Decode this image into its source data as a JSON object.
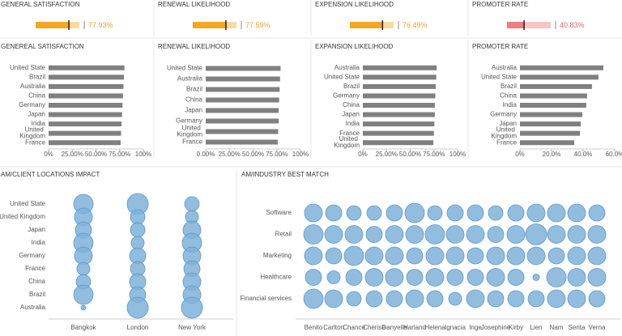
{
  "chart_data": [
    {
      "type": "bullet",
      "title": "GENERAL SATISFACTION",
      "value": 77.93,
      "value_label": "77.93%",
      "xlim": [
        0,
        100
      ],
      "color": "#f5a623",
      "band_color": "#fcd9a2",
      "label_color": "#f0a030"
    },
    {
      "type": "bullet",
      "title": "RENEWAL LIKELIHOOD",
      "value": 77.59,
      "value_label": "77.59%",
      "xlim": [
        0,
        100
      ],
      "color": "#f5a623",
      "band_color": "#fcd9a2",
      "label_color": "#f0a030"
    },
    {
      "type": "bullet",
      "title": "EXPENSION LIKELIHOOD",
      "value": 76.49,
      "value_label": "76.49%",
      "xlim": [
        0,
        100
      ],
      "color": "#f5a623",
      "band_color": "#fcd9a2",
      "label_color": "#f0a030"
    },
    {
      "type": "bullet",
      "title": "PROMOTER RATE",
      "value": 40.83,
      "value_label": "40.83%",
      "xlim": [
        0,
        100
      ],
      "color": "#f07c7c",
      "band_color": "#f8c4c4",
      "label_color": "#e86464"
    },
    {
      "type": "bar",
      "orientation": "horizontal",
      "title": "GENEREAL SATISFACTION",
      "categories": [
        "United State",
        "Brazil",
        "Australia",
        "China",
        "Germany",
        "Japan",
        "India",
        "United Kingdom",
        "France"
      ],
      "values": [
        80,
        79.5,
        79,
        78.5,
        78,
        77.5,
        77,
        76.5,
        76
      ],
      "color": "#808080",
      "xlim": [
        0,
        100
      ],
      "xticks": [
        {
          "value": 0,
          "label": "0%"
        },
        {
          "value": 25,
          "label": "25.00%"
        },
        {
          "value": 50,
          "label": "50.00%"
        },
        {
          "value": 75,
          "label": "75.00%"
        },
        {
          "value": 100,
          "label": "100%"
        }
      ]
    },
    {
      "type": "bar",
      "orientation": "horizontal",
      "title": "RENEWAL LIKELIHOOD",
      "categories": [
        "United State",
        "Australia",
        "Brazil",
        "China",
        "Japan",
        "Germany",
        "United Kingdom",
        "France"
      ],
      "values": [
        79,
        78.5,
        78,
        77.5,
        77,
        77,
        76.5,
        76
      ],
      "color": "#808080",
      "xlim": [
        0,
        100
      ],
      "xticks": [
        {
          "value": 0,
          "label": "0.00%"
        },
        {
          "value": 25,
          "label": "25.00%"
        },
        {
          "value": 50,
          "label": "50.00%"
        },
        {
          "value": 75,
          "label": "75.00%"
        },
        {
          "value": 100,
          "label": "100%"
        }
      ]
    },
    {
      "type": "bar",
      "orientation": "horizontal",
      "title": "EXPANSION LIKELIHOOD",
      "categories": [
        "Australia",
        "United State",
        "Brazil",
        "Germany",
        "China",
        "Japan",
        "India",
        "France",
        "United Kingdom"
      ],
      "values": [
        78,
        77.5,
        77,
        76.5,
        76,
        76,
        75.5,
        75,
        74.5
      ],
      "color": "#808080",
      "xlim": [
        0,
        100
      ],
      "xticks": [
        {
          "value": 0,
          "label": "0%"
        },
        {
          "value": 25,
          "label": "25.00%"
        },
        {
          "value": 50,
          "label": "50.00%"
        },
        {
          "value": 75,
          "label": "75.00%"
        },
        {
          "value": 100,
          "label": "100%"
        }
      ]
    },
    {
      "type": "bar",
      "orientation": "horizontal",
      "title": "PROMOTER RATE",
      "categories": [
        "Australia",
        "United State",
        "Brazil",
        "China",
        "India",
        "Germany",
        "Japan",
        "United Kingdom",
        "France"
      ],
      "values": [
        52.8,
        49.7,
        45.6,
        42.5,
        42,
        39.5,
        38.5,
        38,
        34.4
      ],
      "color": "#808080",
      "xlim": [
        0,
        60
      ],
      "xticks": [
        {
          "value": 0,
          "label": "0%"
        },
        {
          "value": 20,
          "label": "20.0%"
        },
        {
          "value": 40,
          "label": "40.0%"
        },
        {
          "value": 60,
          "label": "60.0%"
        }
      ]
    },
    {
      "type": "bubble",
      "title": "AM/CLIENT LOCATIONS IMPACT",
      "x_categories": [
        "Bangkok",
        "London",
        "New York"
      ],
      "y_categories": [
        "United State",
        "United Kingdom",
        "Japan",
        "India",
        "Germany",
        "France",
        "China",
        "Brazil",
        "Australia"
      ],
      "sizes": [
        [
          12,
          13,
          9
        ],
        [
          11,
          9,
          8
        ],
        [
          10,
          9,
          11
        ],
        [
          12,
          8,
          12
        ],
        [
          11,
          10,
          11
        ],
        [
          8,
          9,
          10
        ],
        [
          9,
          10,
          11
        ],
        [
          12,
          10,
          11
        ],
        [
          3,
          13,
          13
        ]
      ],
      "color": "#7fb2d9",
      "stroke": "#5b98c8"
    },
    {
      "type": "bubble",
      "title": "AM/INDUSTRY BEST MATCH",
      "x_categories": [
        "Benito",
        "Carlton",
        "Chance",
        "Cherise",
        "Danyelle",
        "Harland",
        "Helena",
        "Ignacia",
        "Inge",
        "Josephine",
        "Kirby",
        "Lien",
        "Nam",
        "Serita",
        "Verna"
      ],
      "y_categories": [
        "Software",
        "Retail",
        "Marketing",
        "Healthcare",
        "Financial services"
      ],
      "sizes": [
        [
          11,
          10,
          9,
          9,
          10,
          12,
          9,
          10,
          10,
          9,
          10,
          11,
          11,
          11,
          10
        ],
        [
          12,
          11,
          11,
          10,
          11,
          11,
          12,
          11,
          11,
          10,
          11,
          13,
          11,
          11,
          11
        ],
        [
          11,
          10,
          12,
          11,
          11,
          10,
          11,
          11,
          10,
          11,
          11,
          11,
          10,
          11,
          11
        ],
        [
          10,
          8,
          10,
          11,
          11,
          10,
          11,
          10,
          10,
          11,
          10,
          4,
          12,
          11,
          11
        ],
        [
          12,
          11,
          9,
          10,
          10,
          11,
          10,
          8,
          11,
          10,
          10,
          10,
          11,
          11,
          10
        ]
      ],
      "color": "#7fb2d9",
      "stroke": "#5b98c8"
    }
  ]
}
